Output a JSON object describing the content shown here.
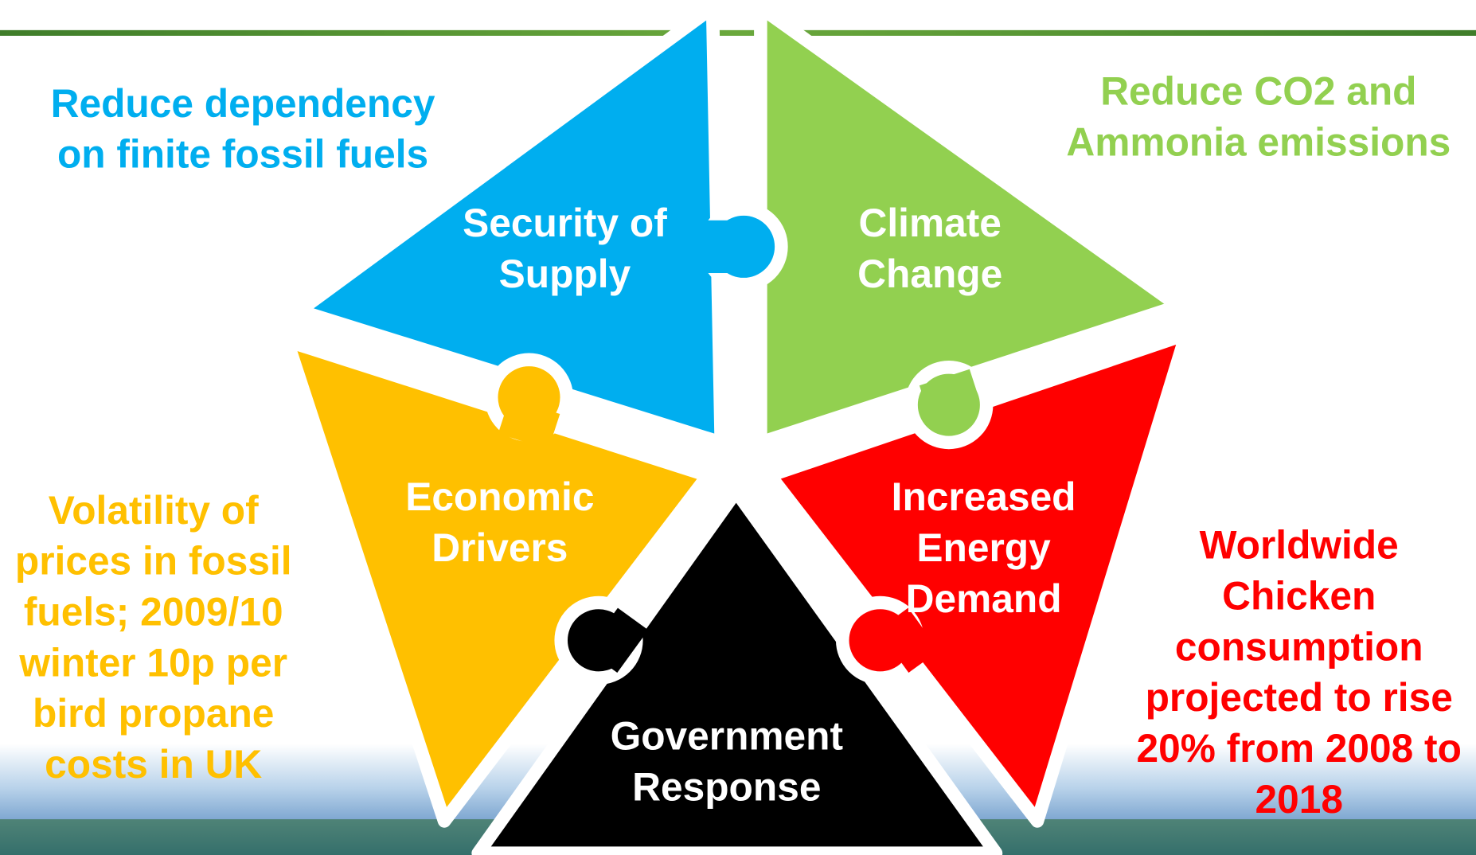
{
  "notes": [
    {
      "lines": [
        "Reduce dependency",
        "on finite fossil fuels"
      ]
    },
    {
      "lines": [
        "Reduce CO2 and",
        "Ammonia emissions"
      ]
    },
    {
      "lines": [
        "Volatility of",
        "prices in fossil",
        "fuels; 2009/10",
        "winter 10p per",
        "bird propane",
        "costs in UK"
      ]
    },
    {
      "lines": [
        "Worldwide",
        "Chicken",
        "consumption",
        "projected to rise",
        "20% from 2008 to",
        "2018"
      ]
    }
  ],
  "pieces": [
    {
      "lines": [
        "Security of",
        "Supply"
      ]
    },
    {
      "lines": [
        "Climate",
        "Change"
      ]
    },
    {
      "lines": [
        "Economic",
        "Drivers"
      ]
    },
    {
      "lines": [
        "Increased",
        "Energy",
        "Demand"
      ]
    },
    {
      "lines": [
        "Government",
        "Response"
      ]
    }
  ]
}
